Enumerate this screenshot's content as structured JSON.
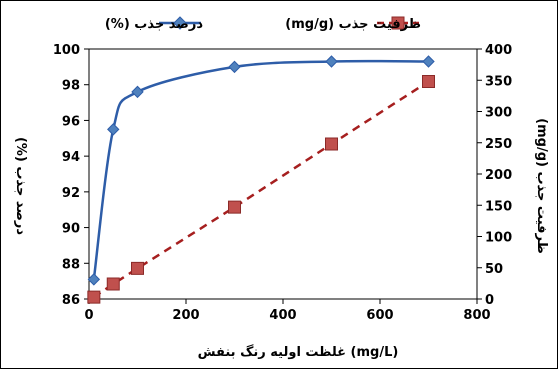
{
  "chart_data": {
    "type": "line",
    "x": [
      10,
      50,
      100,
      300,
      500,
      700
    ],
    "xlabel": "(mg/L) غلظت اولیه رنگ بنفش",
    "xlim": [
      0,
      800
    ],
    "xticks": [
      "0",
      "200",
      "400",
      "600",
      "800"
    ],
    "grid": false,
    "legend_position": "top",
    "series": [
      {
        "name": "درصد جذب (%)",
        "axis": "left",
        "values": [
          87.1,
          95.5,
          97.6,
          99.0,
          99.3,
          99.3
        ],
        "color": "#2E5DA8",
        "marker": "diamond",
        "marker_color": "#4F81BD",
        "line_style": "solid"
      },
      {
        "name": "ظرفیت جذب (mg/g)",
        "axis": "right",
        "values": [
          3,
          24,
          49,
          147,
          248,
          348
        ],
        "color": "#A61F1F",
        "marker": "square",
        "marker_color": "#C0504D",
        "line_style": "dashed"
      }
    ],
    "ylabel": "درصد جذب (%)",
    "ylim": [
      86,
      100
    ],
    "yticks": [
      "86",
      "88",
      "90",
      "92",
      "94",
      "96",
      "98",
      "100"
    ],
    "y2label": "ظرفیت جذب (mg/g)",
    "y2lim": [
      0,
      400
    ],
    "y2ticks": [
      "0",
      "50",
      "100",
      "150",
      "200",
      "250",
      "300",
      "350",
      "400"
    ]
  }
}
